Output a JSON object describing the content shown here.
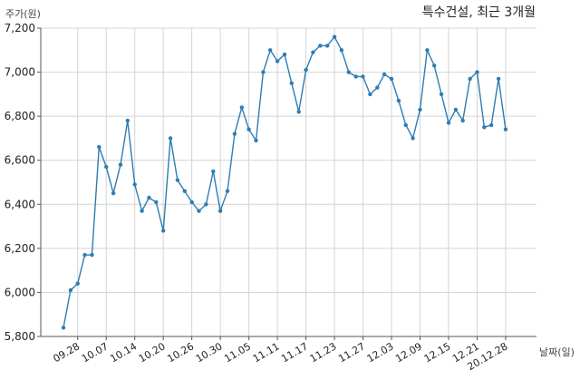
{
  "chart_data": {
    "type": "line",
    "title": "특수건설, 최근 3개월",
    "ylabel": "주가(원)",
    "xlabel": "날짜(일)",
    "ylim": [
      5800,
      7200
    ],
    "yticks": [
      5800,
      6000,
      6200,
      6400,
      6600,
      6800,
      7000,
      7200
    ],
    "ytick_labels": [
      "5,800",
      "6,000",
      "6,200",
      "6,400",
      "6,600",
      "6,800",
      "7,000",
      "7,200"
    ],
    "xtick_labels": [
      "09.28",
      "10.07",
      "10.14",
      "10.20",
      "10.26",
      "10.30",
      "11.05",
      "11.11",
      "11.17",
      "11.23",
      "11.27",
      "12.03",
      "12.09",
      "12.15",
      "12.21",
      "20.12.28"
    ],
    "xtick_index": [
      2,
      6,
      10,
      14,
      18,
      22,
      26,
      30,
      34,
      38,
      42,
      46,
      50,
      54,
      58,
      62
    ],
    "grid": true,
    "color": "#2e7db3",
    "series": [
      {
        "values": [
          5840,
          6010,
          6040,
          6170,
          6170,
          6660,
          6570,
          6450,
          6580,
          6780,
          6490,
          6370,
          6430,
          6410,
          6280,
          6700,
          6510,
          6460,
          6410,
          6370,
          6400,
          6550,
          6370,
          6460,
          6720,
          6840,
          6740,
          6690,
          7000,
          7100,
          7050,
          7080,
          6950,
          6820,
          7010,
          7090,
          7120,
          7120,
          7160,
          7100,
          7000,
          6980,
          6980,
          6900,
          6930,
          6990,
          6970,
          6870,
          6760,
          6700,
          6830,
          7100,
          7030,
          6900,
          6770,
          6830,
          6780,
          6970,
          7000,
          6750,
          6760,
          6970,
          6740
        ]
      }
    ]
  }
}
